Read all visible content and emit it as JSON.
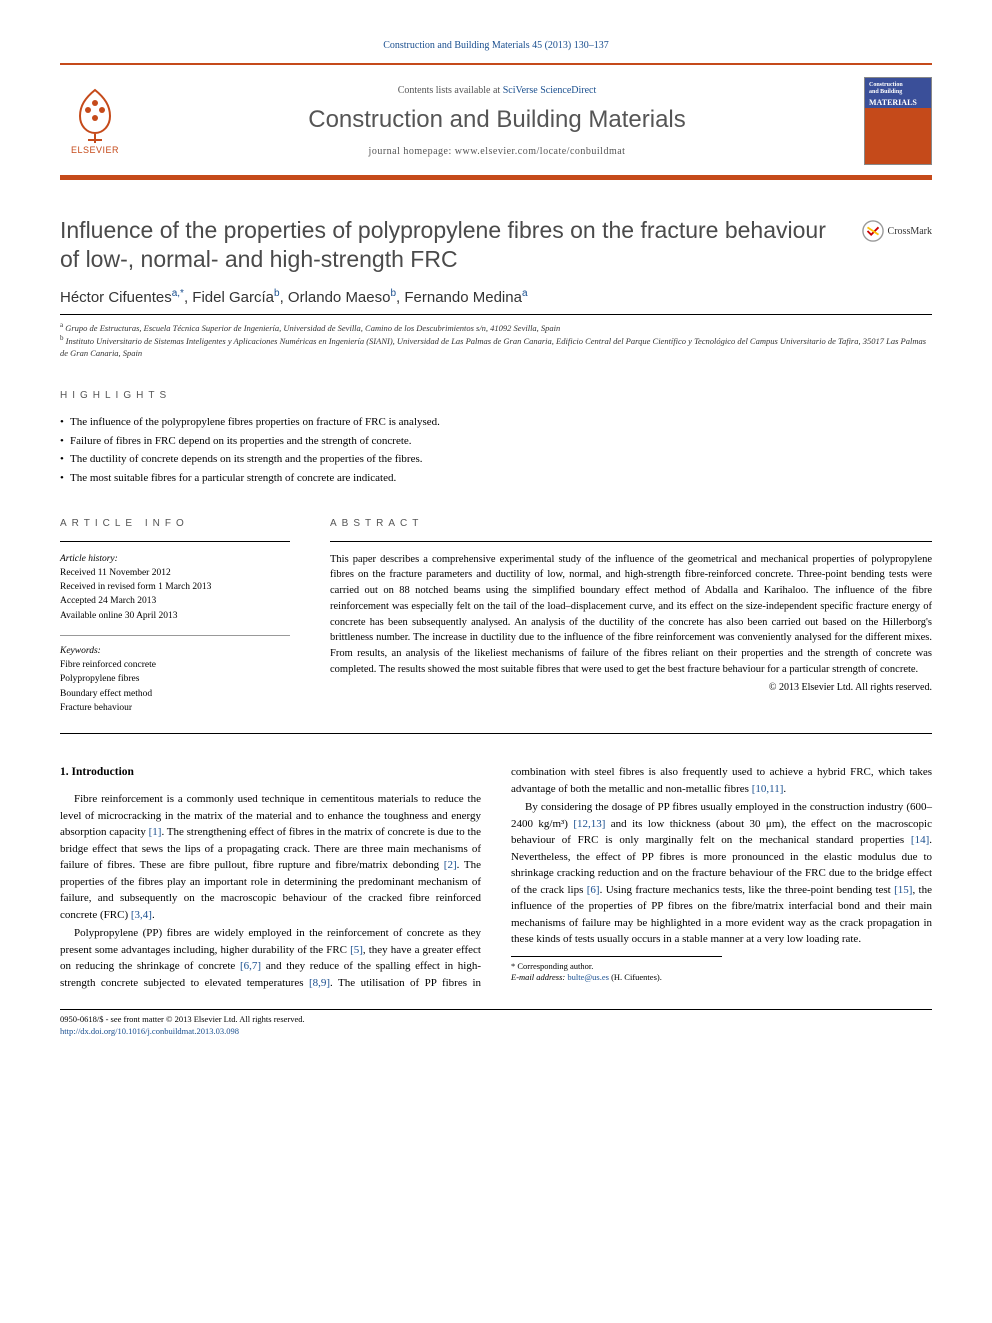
{
  "citation": "Construction and Building Materials 45 (2013) 130–137",
  "header": {
    "contents_prefix": "Contents lists available at ",
    "contents_link": "SciVerse ScienceDirect",
    "journal_title": "Construction and Building Materials",
    "homepage_prefix": "journal homepage: ",
    "homepage_url": "www.elsevier.com/locate/conbuildmat",
    "elsevier_label": "ELSEVIER",
    "cover_line1": "Construction",
    "cover_line2": "and Building",
    "cover_line3": "MATERIALS"
  },
  "article": {
    "title": "Influence of the properties of polypropylene fibres on the fracture behaviour of low-, normal- and high-strength FRC",
    "crossmark": "CrossMark",
    "authors_html": "Héctor Cifuentes",
    "authors": [
      {
        "name": "Héctor Cifuentes",
        "sup": "a,*"
      },
      {
        "name": "Fidel García",
        "sup": "b"
      },
      {
        "name": "Orlando Maeso",
        "sup": "b"
      },
      {
        "name": "Fernando Medina",
        "sup": "a"
      }
    ],
    "affiliations": [
      {
        "sup": "a",
        "text": "Grupo de Estructuras, Escuela Técnica Superior de Ingeniería, Universidad de Sevilla, Camino de los Descubrimientos s/n, 41092 Sevilla, Spain"
      },
      {
        "sup": "b",
        "text": "Instituto Universitario de Sistemas Inteligentes y Aplicaciones Numéricas en Ingeniería (SIANI), Universidad de Las Palmas de Gran Canaria, Edificio Central del Parque Científico y Tecnológico del Campus Universitario de Tafira, 35017 Las Palmas de Gran Canaria, Spain"
      }
    ]
  },
  "highlights": {
    "label": "HIGHLIGHTS",
    "items": [
      "The influence of the polypropylene fibres properties on fracture of FRC is analysed.",
      "Failure of fibres in FRC depend on its properties and the strength of concrete.",
      "The ductility of concrete depends on its strength and the properties of the fibres.",
      "The most suitable fibres for a particular strength of concrete are indicated."
    ]
  },
  "article_info": {
    "label": "ARTICLE INFO",
    "history_label": "Article history:",
    "history": [
      "Received 11 November 2012",
      "Received in revised form 1 March 2013",
      "Accepted 24 March 2013",
      "Available online 30 April 2013"
    ],
    "keywords_label": "Keywords:",
    "keywords": [
      "Fibre reinforced concrete",
      "Polypropylene fibres",
      "Boundary effect method",
      "Fracture behaviour"
    ]
  },
  "abstract": {
    "label": "ABSTRACT",
    "text": "This paper describes a comprehensive experimental study of the influence of the geometrical and mechanical properties of polypropylene fibres on the fracture parameters and ductility of low, normal, and high-strength fibre-reinforced concrete. Three-point bending tests were carried out on 88 notched beams using the simplified boundary effect method of Abdalla and Karihaloo. The influence of the fibre reinforcement was especially felt on the tail of the load–displacement curve, and its effect on the size-independent specific fracture energy of concrete has been subsequently analysed. An analysis of the ductility of the concrete has also been carried out based on the Hillerborg's brittleness number. The increase in ductility due to the influence of the fibre reinforcement was conveniently analysed for the different mixes. From results, an analysis of the likeliest mechanisms of failure of the fibres reliant on their properties and the strength of concrete was completed. The results showed the most suitable fibres that were used to get the best fracture behaviour for a particular strength of concrete.",
    "copyright": "© 2013 Elsevier Ltd. All rights reserved."
  },
  "body": {
    "section_number": "1.",
    "section_title": "Introduction",
    "paragraphs": [
      "Fibre reinforcement is a commonly used technique in cementitous materials to reduce the level of microcracking in the matrix of the material and to enhance the toughness and energy absorption capacity [1]. The strengthening effect of fibres in the matrix of concrete is due to the bridge effect that sews the lips of a propagating crack. There are three main mechanisms of failure of fibres. These are fibre pullout, fibre rupture and fibre/matrix debonding [2]. The properties of the fibres play an important role in determining the predominant mechanism of failure, and subsequently on the macroscopic behaviour of the cracked fibre reinforced concrete (FRC) [3,4].",
      "Polypropylene (PP) fibres are widely employed in the reinforcement of concrete as they present some advantages including, higher durability of the FRC [5], they have a greater effect on reducing the shrinkage of concrete [6,7] and they reduce of the spalling effect in high-strength concrete subjected to elevated temperatures [8,9]. The utilisation of PP fibres in combination with steel fibres is also frequently used to achieve a hybrid FRC, which takes advantage of both the metallic and non-metallic fibres [10,11].",
      "By considering the dosage of PP fibres usually employed in the construction industry (600–2400 kg/m³) [12,13] and its low thickness (about 30 μm), the effect on the macroscopic behaviour of FRC is only marginally felt on the mechanical standard properties [14]. Nevertheless, the effect of PP fibres is more pronounced in the elastic modulus due to shrinkage cracking reduction and on the fracture behaviour of the FRC due to the bridge effect of the crack lips [6]. Using fracture mechanics tests, like the three-point bending test [15], the influence of the properties of PP fibres on the fibre/matrix interfacial bond and their main mechanisms of failure may be highlighted in a more evident way as the crack propagation in these kinds of tests usually occurs in a stable manner at a very low loading rate."
    ]
  },
  "footnote": {
    "corresponding": "* Corresponding author.",
    "email_label": "E-mail address:",
    "email": "bulte@us.es",
    "email_suffix": "(H. Cifuentes)."
  },
  "footer": {
    "issn_line": "0950-0618/$ - see front matter © 2013 Elsevier Ltd. All rights reserved.",
    "doi": "http://dx.doi.org/10.1016/j.conbuildmat.2013.03.098"
  },
  "colors": {
    "accent": "#c54a1a",
    "link": "#1a4f8f",
    "text_grey": "#555"
  }
}
